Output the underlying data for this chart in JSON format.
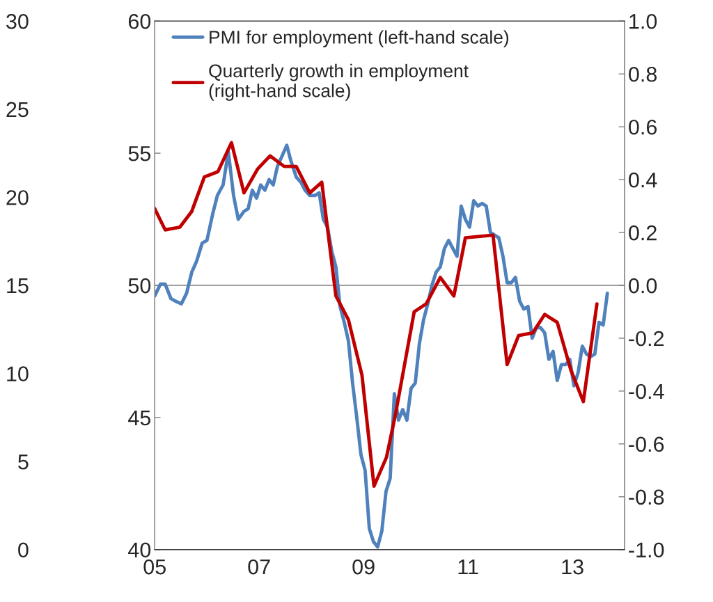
{
  "chart_data": {
    "type": "line",
    "xlim": [
      2005,
      2014
    ],
    "xticks": [
      {
        "value": 2005,
        "label": "05"
      },
      {
        "value": 2007,
        "label": "07"
      },
      {
        "value": 2009,
        "label": "09"
      },
      {
        "value": 2011,
        "label": "11"
      },
      {
        "value": 2013,
        "label": "13"
      }
    ],
    "ylim": [
      40,
      60
    ],
    "yticks": [
      40,
      45,
      50,
      55,
      60
    ],
    "y2lim": [
      -1.0,
      1.0
    ],
    "y2ticks": [
      {
        "value": -1.0,
        "label": "-1.0"
      },
      {
        "value": -0.8,
        "label": "-0.8"
      },
      {
        "value": -0.6,
        "label": "-0.6"
      },
      {
        "value": -0.4,
        "label": "-0.4"
      },
      {
        "value": -0.2,
        "label": "-0.2"
      },
      {
        "value": 0.0,
        "label": "0.0"
      },
      {
        "value": 0.2,
        "label": "0.2"
      },
      {
        "value": 0.4,
        "label": "0.4"
      },
      {
        "value": 0.6,
        "label": "0.6"
      },
      {
        "value": 0.8,
        "label": "0.8"
      },
      {
        "value": 1.0,
        "label": "1.0"
      }
    ],
    "y3lim": [
      0,
      30
    ],
    "y3ticks": [
      0,
      5,
      10,
      15,
      20,
      25,
      30
    ],
    "ref_lines": [
      {
        "axis": "y",
        "value": 50,
        "color": "#808080"
      }
    ],
    "legend": "top left",
    "grid": false,
    "marker": "none",
    "line_style": "solid",
    "series": [
      {
        "name": "PMI for employment (left-hand scale)",
        "color": "#4f81bd",
        "x": [
          2005.0,
          2005.11,
          2005.2,
          2005.31,
          2005.4,
          2005.51,
          2005.61,
          2005.71,
          2005.8,
          2005.91,
          2006.0,
          2006.11,
          2006.2,
          2006.31,
          2006.41,
          2006.51,
          2006.6,
          2006.71,
          2006.79,
          2006.87,
          2006.95,
          2007.03,
          2007.11,
          2007.19,
          2007.27,
          2007.35,
          2007.44,
          2007.53,
          2007.61,
          2007.71,
          2007.8,
          2007.88,
          2007.97,
          2008.07,
          2008.15,
          2008.23,
          2008.31,
          2008.39,
          2008.47,
          2008.55,
          2008.63,
          2008.71,
          2008.79,
          2008.87,
          2008.95,
          2009.03,
          2009.11,
          2009.19,
          2009.27,
          2009.35,
          2009.43,
          2009.51,
          2009.59,
          2009.67,
          2009.75,
          2009.83,
          2009.91,
          2009.99,
          2010.07,
          2010.15,
          2010.23,
          2010.31,
          2010.39,
          2010.47,
          2010.55,
          2010.63,
          2010.71,
          2010.79,
          2010.87,
          2010.95,
          2011.03,
          2011.11,
          2011.19,
          2011.27,
          2011.35,
          2011.43,
          2011.51,
          2011.59,
          2011.67,
          2011.75,
          2011.83,
          2011.91,
          2011.99,
          2012.07,
          2012.15,
          2012.23,
          2012.31,
          2012.39,
          2012.47,
          2012.55,
          2012.63,
          2012.71,
          2012.79,
          2012.87,
          2012.95,
          2013.03,
          2013.11,
          2013.19,
          2013.27,
          2013.35,
          2013.43,
          2013.51,
          2013.59,
          2013.67
        ],
        "values": [
          49.6,
          50.05,
          50.05,
          49.5,
          49.4,
          49.3,
          49.7,
          50.5,
          50.9,
          51.6,
          51.7,
          52.7,
          53.4,
          53.8,
          55.05,
          53.4,
          52.5,
          52.8,
          52.9,
          53.6,
          53.3,
          53.8,
          53.6,
          54.0,
          53.8,
          54.5,
          54.9,
          55.3,
          54.7,
          54.1,
          53.9,
          53.6,
          53.4,
          53.4,
          53.5,
          52.5,
          52.2,
          51.3,
          50.7,
          49.2,
          48.6,
          47.9,
          46.3,
          45.0,
          43.6,
          43.0,
          40.8,
          40.3,
          40.1,
          40.7,
          42.2,
          42.7,
          45.9,
          44.9,
          45.3,
          44.9,
          46.1,
          46.3,
          47.8,
          48.7,
          49.3,
          50.0,
          50.5,
          50.7,
          51.4,
          51.7,
          51.4,
          51.1,
          53.0,
          52.5,
          52.2,
          53.2,
          53.0,
          53.1,
          53.0,
          52.0,
          51.9,
          51.8,
          51.1,
          50.1,
          50.1,
          50.3,
          49.4,
          49.1,
          49.2,
          48.0,
          48.4,
          48.4,
          48.2,
          47.2,
          47.5,
          46.4,
          47.0,
          47.0,
          47.2,
          46.2,
          46.7,
          47.7,
          47.4,
          47.3,
          47.4,
          48.6,
          48.5,
          49.7
        ]
      },
      {
        "name": "Quarterly growth in employment\n(right-hand scale)",
        "color": "#c00000",
        "axis": "y2",
        "x": [
          2005.0,
          2005.2,
          2005.48,
          2005.71,
          2005.95,
          2006.21,
          2006.47,
          2006.71,
          2006.97,
          2007.21,
          2007.48,
          2007.71,
          2007.97,
          2008.2,
          2008.47,
          2008.71,
          2008.97,
          2009.2,
          2009.44,
          2009.61,
          2009.97,
          2010.2,
          2010.47,
          2010.73,
          2010.95,
          2011.48,
          2011.75,
          2011.97,
          2012.24,
          2012.47,
          2012.71,
          2012.97,
          2013.21,
          2013.47
        ],
        "values": [
          0.29,
          0.21,
          0.22,
          0.28,
          0.41,
          0.43,
          0.54,
          0.35,
          0.44,
          0.49,
          0.45,
          0.45,
          0.35,
          0.39,
          -0.04,
          -0.13,
          -0.34,
          -0.76,
          -0.65,
          -0.49,
          -0.1,
          -0.07,
          0.03,
          -0.04,
          0.18,
          0.19,
          -0.3,
          -0.19,
          -0.18,
          -0.11,
          -0.14,
          -0.32,
          -0.44,
          -0.07
        ]
      }
    ]
  }
}
